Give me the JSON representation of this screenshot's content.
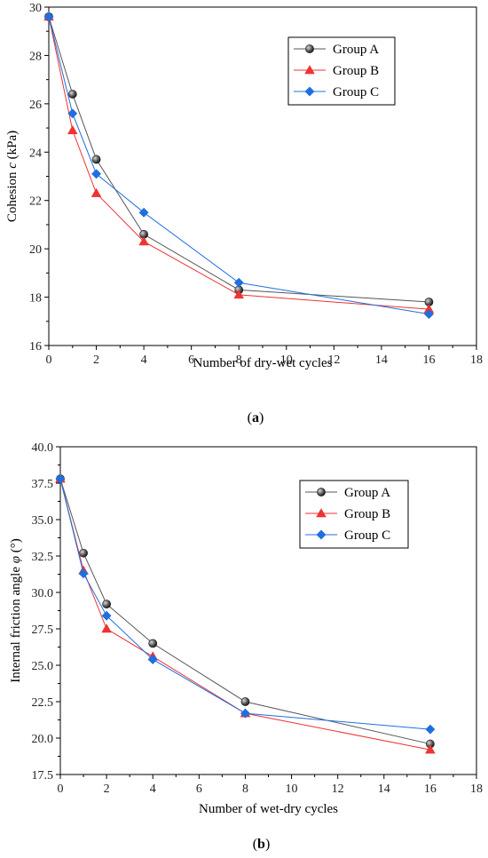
{
  "chart_data": [
    {
      "type": "line",
      "panel_label": "a",
      "xlabel": "Number of dry-wet cycles",
      "ylabel_prefix": "Cohesion ",
      "ylabel_symbol": "c",
      "ylabel_suffix": " (kPa)",
      "xlim": [
        0,
        18
      ],
      "ylim": [
        16,
        30
      ],
      "xticks": [
        0,
        2,
        4,
        6,
        8,
        10,
        12,
        14,
        16,
        18
      ],
      "yticks": [
        16,
        18,
        20,
        22,
        24,
        26,
        28,
        30
      ],
      "ytick_labels": [
        "16",
        "18",
        "20",
        "22",
        "24",
        "26",
        "28",
        "30"
      ],
      "grid": false,
      "legend_position": "top-right",
      "x": [
        0,
        1,
        2,
        4,
        8,
        16
      ],
      "series": [
        {
          "name": "Group A",
          "color": "#555555",
          "marker": "sphere",
          "values": [
            29.6,
            26.4,
            23.7,
            20.6,
            18.3,
            17.8
          ]
        },
        {
          "name": "Group B",
          "color": "#ee3333",
          "marker": "triangle",
          "values": [
            29.6,
            24.9,
            22.3,
            20.3,
            18.1,
            17.5
          ]
        },
        {
          "name": "Group C",
          "color": "#1f6fe0",
          "marker": "diamond",
          "values": [
            29.6,
            25.6,
            23.1,
            21.5,
            18.6,
            17.3
          ]
        }
      ]
    },
    {
      "type": "line",
      "panel_label": "b",
      "xlabel": "Number of wet-dry  cycles",
      "ylabel_prefix": "Internal friction angle ",
      "ylabel_symbol": "φ",
      "ylabel_suffix": " (°)",
      "xlim": [
        0,
        18
      ],
      "ylim": [
        17.5,
        40
      ],
      "xticks": [
        0,
        2,
        4,
        6,
        8,
        10,
        12,
        14,
        16,
        18
      ],
      "yticks": [
        17.5,
        20,
        22.5,
        25,
        27.5,
        30,
        32.5,
        35,
        37.5,
        40
      ],
      "ytick_labels": [
        "17.5",
        "20.0",
        "22.5",
        "25.0",
        "27.5",
        "30.0",
        "32.5",
        "35.0",
        "37.5",
        "40.0"
      ],
      "grid": false,
      "legend_position": "top-right",
      "x": [
        0,
        1,
        2,
        4,
        8,
        16
      ],
      "series": [
        {
          "name": "Group A",
          "color": "#555555",
          "marker": "sphere",
          "values": [
            37.8,
            32.7,
            29.2,
            26.5,
            22.5,
            19.6
          ]
        },
        {
          "name": "Group B",
          "color": "#ee3333",
          "marker": "triangle",
          "values": [
            37.8,
            31.5,
            27.5,
            25.6,
            21.7,
            19.2
          ]
        },
        {
          "name": "Group C",
          "color": "#1f6fe0",
          "marker": "diamond",
          "values": [
            37.8,
            31.3,
            28.4,
            25.4,
            21.7,
            20.6
          ]
        }
      ]
    }
  ]
}
